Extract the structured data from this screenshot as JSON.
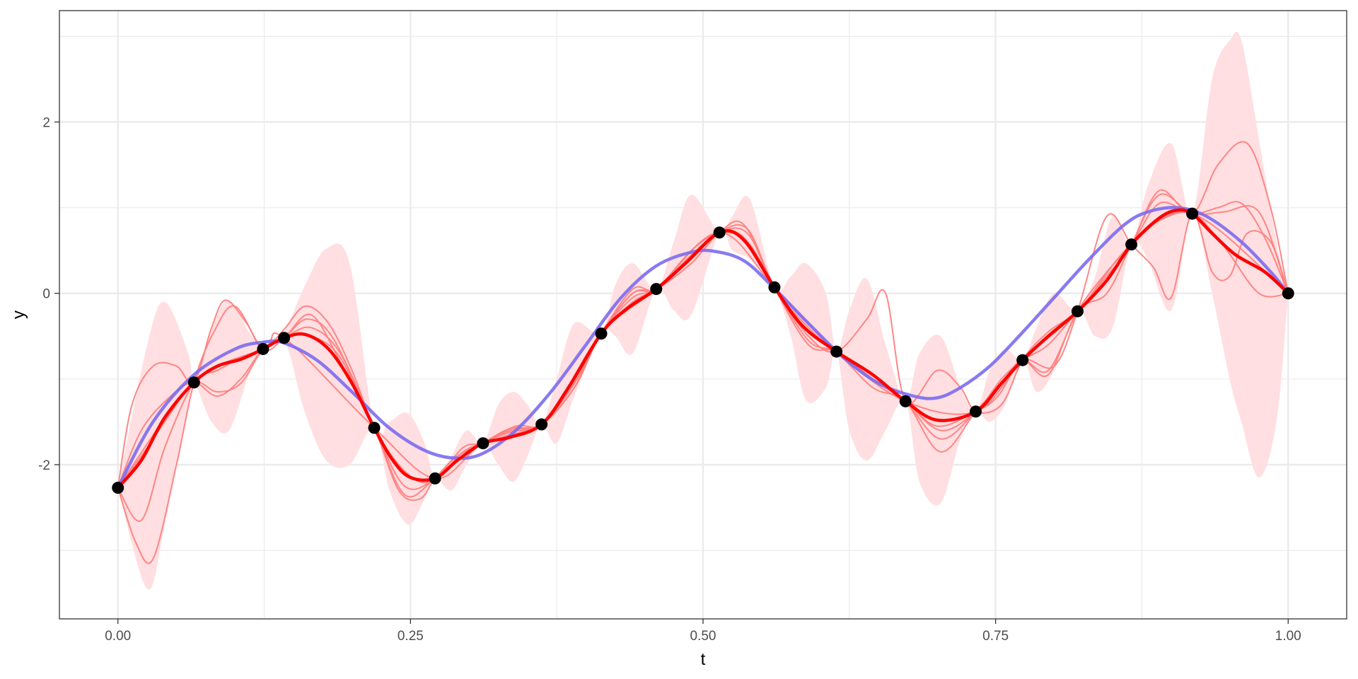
{
  "chart_data": {
    "type": "line",
    "title": "",
    "xlabel": "t",
    "ylabel": "y",
    "xlim": [
      -0.05,
      1.05
    ],
    "ylim": [
      -3.8,
      3.3
    ],
    "x_ticks": [
      0.0,
      0.25,
      0.5,
      0.75,
      1.0
    ],
    "x_tick_labels": [
      "0.00",
      "0.25",
      "0.50",
      "0.75",
      "1.00"
    ],
    "x_minor_ticks": [
      0.125,
      0.375,
      0.625,
      0.875
    ],
    "y_ticks": [
      -2,
      0,
      2
    ],
    "y_tick_labels": [
      "-2",
      "0",
      "2"
    ],
    "y_minor_ticks": [
      -3,
      -1,
      1,
      3
    ],
    "grid": true,
    "colors": {
      "band": "#ffdfe1",
      "sample": "#ff8080",
      "mean": "#ff0000",
      "truth": "#7b6cf0",
      "points": "#000000",
      "grid": "#ebebeb",
      "panel_border": "#333333"
    },
    "points": {
      "x": [
        0.0,
        0.065,
        0.124,
        0.142,
        0.219,
        0.271,
        0.312,
        0.362,
        0.413,
        0.46,
        0.514,
        0.561,
        0.614,
        0.673,
        0.733,
        0.773,
        0.82,
        0.866,
        0.918,
        1.0
      ],
      "y": [
        -2.27,
        -1.04,
        -0.65,
        -0.52,
        -1.57,
        -2.16,
        -1.75,
        -1.53,
        -0.47,
        0.05,
        0.71,
        0.07,
        -0.68,
        -1.26,
        -1.38,
        -0.78,
        -0.21,
        0.57,
        0.93,
        0.0
      ]
    },
    "band": {
      "x": [
        0.0,
        0.025,
        0.04,
        0.06,
        0.065,
        0.08,
        0.095,
        0.112,
        0.124,
        0.142,
        0.16,
        0.178,
        0.198,
        0.219,
        0.232,
        0.248,
        0.262,
        0.271,
        0.285,
        0.298,
        0.312,
        0.325,
        0.338,
        0.35,
        0.362,
        0.375,
        0.39,
        0.413,
        0.425,
        0.44,
        0.46,
        0.475,
        0.49,
        0.514,
        0.525,
        0.54,
        0.561,
        0.575,
        0.588,
        0.605,
        0.614,
        0.625,
        0.64,
        0.656,
        0.673,
        0.685,
        0.703,
        0.72,
        0.733,
        0.745,
        0.758,
        0.773,
        0.785,
        0.8,
        0.82,
        0.835,
        0.85,
        0.866,
        0.88,
        0.9,
        0.918,
        0.935,
        0.95,
        0.96,
        0.975,
        0.99,
        1.0
      ],
      "lower": [
        -2.27,
        -3.45,
        -2.7,
        -1.3,
        -1.04,
        -1.5,
        -1.6,
        -0.95,
        -0.65,
        -0.55,
        -1.4,
        -1.95,
        -2.0,
        -1.57,
        -2.3,
        -2.7,
        -2.4,
        -2.16,
        -2.3,
        -2.0,
        -1.75,
        -2.0,
        -2.2,
        -1.9,
        -1.53,
        -1.75,
        -1.2,
        -0.47,
        -0.5,
        -0.7,
        0.05,
        -0.2,
        -0.25,
        0.71,
        0.5,
        0.4,
        0.07,
        -0.5,
        -1.25,
        -1.1,
        -0.68,
        -1.6,
        -1.95,
        -1.6,
        -1.26,
        -2.2,
        -2.45,
        -1.7,
        -1.38,
        -1.5,
        -1.3,
        -0.78,
        -1.15,
        -0.9,
        -0.21,
        -0.5,
        -0.4,
        0.57,
        0.4,
        -0.2,
        0.93,
        0.0,
        -1.0,
        -1.5,
        -2.15,
        -1.5,
        0.0
      ],
      "upper": [
        -2.27,
        -0.6,
        -0.1,
        -0.7,
        -1.04,
        -0.4,
        -0.08,
        -0.45,
        -0.65,
        -0.45,
        0.1,
        0.52,
        0.35,
        -1.57,
        -1.5,
        -1.4,
        -1.75,
        -2.16,
        -1.9,
        -1.6,
        -1.75,
        -1.3,
        -1.15,
        -1.3,
        -1.53,
        -1.0,
        -0.35,
        -0.47,
        0.1,
        0.35,
        0.05,
        0.6,
        1.15,
        0.71,
        0.9,
        1.1,
        0.07,
        0.2,
        0.35,
        0.0,
        -0.68,
        -0.2,
        0.17,
        -0.6,
        -1.26,
        -0.7,
        -0.5,
        -1.1,
        -1.38,
        -0.9,
        -0.65,
        -0.78,
        -0.4,
        0.0,
        -0.21,
        0.2,
        0.9,
        0.57,
        1.25,
        1.75,
        0.93,
        2.5,
        2.95,
        2.95,
        1.8,
        0.6,
        0.0
      ]
    },
    "series": [
      {
        "x": [
          0.0,
          0.065,
          0.124,
          0.142,
          0.219,
          0.271,
          0.312,
          0.362,
          0.413,
          0.46,
          0.514,
          0.561,
          0.614,
          0.673,
          0.733,
          0.773,
          0.82,
          0.866,
          0.918,
          1.0
        ],
        "y": [
          -2.27,
          -1.04,
          -0.65,
          -0.52,
          -1.57,
          -2.16,
          -1.75,
          -1.53,
          -0.47,
          0.05,
          0.71,
          0.07,
          -0.68,
          -1.26,
          -1.38,
          -0.78,
          -0.21,
          0.57,
          0.93,
          0.0
        ]
      },
      {
        "x": [
          0.0,
          0.012,
          0.03,
          0.05,
          0.065,
          0.08,
          0.092,
          0.11,
          0.124,
          0.142,
          0.16,
          0.18,
          0.2,
          0.219,
          0.24,
          0.258,
          0.271,
          0.29,
          0.312,
          0.335,
          0.362,
          0.39,
          0.413,
          0.44,
          0.46,
          0.49,
          0.514,
          0.535,
          0.561,
          0.59,
          0.614,
          0.64,
          0.656,
          0.673,
          0.7,
          0.72,
          0.733,
          0.755,
          0.773,
          0.795,
          0.82,
          0.845,
          0.866,
          0.89,
          0.918,
          0.94,
          0.965,
          0.985,
          1.0
        ],
        "y": [
          -2.27,
          -1.3,
          -0.85,
          -0.85,
          -1.04,
          -0.4,
          -0.08,
          -0.35,
          -0.65,
          -0.42,
          -0.15,
          -0.35,
          -0.9,
          -1.57,
          -2.0,
          -2.2,
          -2.16,
          -1.95,
          -1.75,
          -1.62,
          -1.53,
          -1.05,
          -0.47,
          0.05,
          0.05,
          0.5,
          0.71,
          0.65,
          0.07,
          -0.5,
          -0.68,
          -0.3,
          0.0,
          -1.26,
          -0.9,
          -1.1,
          -1.38,
          -1.3,
          -0.78,
          -0.45,
          -0.21,
          0.2,
          0.57,
          1.2,
          0.93,
          1.5,
          1.75,
          1.0,
          0.0
        ]
      },
      {
        "x": [
          0.0,
          0.015,
          0.03,
          0.05,
          0.065,
          0.082,
          0.1,
          0.124,
          0.142,
          0.165,
          0.19,
          0.219,
          0.24,
          0.258,
          0.271,
          0.29,
          0.312,
          0.34,
          0.362,
          0.39,
          0.413,
          0.44,
          0.46,
          0.49,
          0.514,
          0.535,
          0.561,
          0.59,
          0.614,
          0.645,
          0.673,
          0.7,
          0.733,
          0.752,
          0.773,
          0.8,
          0.82,
          0.845,
          0.866,
          0.885,
          0.9,
          0.918,
          0.935,
          0.95,
          0.965,
          0.985,
          1.0
        ],
        "y": [
          -2.27,
          -2.9,
          -3.1,
          -2.0,
          -1.04,
          -0.45,
          -0.15,
          -0.65,
          -0.52,
          -0.25,
          -0.8,
          -1.57,
          -2.3,
          -2.4,
          -2.16,
          -1.9,
          -1.75,
          -1.55,
          -1.53,
          -1.05,
          -0.47,
          0.0,
          0.05,
          0.35,
          0.71,
          0.8,
          0.07,
          -0.6,
          -0.68,
          -1.0,
          -1.26,
          -1.55,
          -1.38,
          -1.2,
          -0.78,
          -0.85,
          -0.21,
          0.9,
          0.57,
          0.3,
          -0.05,
          0.93,
          0.25,
          0.2,
          0.7,
          0.6,
          0.0
        ]
      },
      {
        "x": [
          0.0,
          0.02,
          0.04,
          0.065,
          0.085,
          0.105,
          0.124,
          0.142,
          0.162,
          0.185,
          0.219,
          0.245,
          0.271,
          0.295,
          0.312,
          0.335,
          0.362,
          0.39,
          0.413,
          0.44,
          0.46,
          0.49,
          0.514,
          0.538,
          0.561,
          0.59,
          0.614,
          0.645,
          0.673,
          0.703,
          0.733,
          0.755,
          0.773,
          0.795,
          0.82,
          0.845,
          0.866,
          0.89,
          0.918,
          0.94,
          0.96,
          0.98,
          1.0
        ],
        "y": [
          -2.27,
          -2.65,
          -1.8,
          -1.04,
          -0.9,
          -0.75,
          -0.65,
          -0.52,
          -0.3,
          -0.55,
          -1.57,
          -2.25,
          -2.16,
          -1.8,
          -1.75,
          -1.6,
          -1.53,
          -1.1,
          -0.47,
          -0.1,
          0.05,
          0.4,
          0.71,
          0.75,
          0.07,
          -0.4,
          -0.68,
          -0.95,
          -1.26,
          -1.7,
          -1.38,
          -1.05,
          -0.78,
          -0.9,
          -0.21,
          0.25,
          0.57,
          1.05,
          0.93,
          1.0,
          1.05,
          0.65,
          0.0
        ]
      },
      {
        "x": [
          0.0,
          0.02,
          0.045,
          0.065,
          0.085,
          0.105,
          0.124,
          0.142,
          0.165,
          0.19,
          0.219,
          0.245,
          0.271,
          0.295,
          0.312,
          0.335,
          0.362,
          0.39,
          0.413,
          0.44,
          0.46,
          0.49,
          0.514,
          0.538,
          0.561,
          0.59,
          0.614,
          0.645,
          0.673,
          0.703,
          0.733,
          0.755,
          0.773,
          0.795,
          0.82,
          0.845,
          0.866,
          0.89,
          0.918,
          0.945,
          0.975,
          1.0
        ],
        "y": [
          -2.27,
          -1.9,
          -1.4,
          -1.04,
          -1.15,
          -1.05,
          -0.65,
          -0.52,
          -0.4,
          -0.7,
          -1.57,
          -2.35,
          -2.16,
          -1.9,
          -1.75,
          -1.58,
          -1.53,
          -1.1,
          -0.47,
          -0.05,
          0.05,
          0.45,
          0.71,
          0.7,
          0.07,
          -0.45,
          -0.68,
          -1.1,
          -1.26,
          -1.85,
          -1.38,
          -1.05,
          -0.78,
          -0.95,
          -0.21,
          0.0,
          0.57,
          1.15,
          0.93,
          0.95,
          0.95,
          0.0
        ]
      },
      {
        "x": [
          0.0,
          0.02,
          0.045,
          0.065,
          0.085,
          0.105,
          0.124,
          0.142,
          0.165,
          0.19,
          0.219,
          0.245,
          0.271,
          0.295,
          0.312,
          0.335,
          0.362,
          0.39,
          0.413,
          0.44,
          0.46,
          0.49,
          0.514,
          0.538,
          0.561,
          0.59,
          0.614,
          0.645,
          0.673,
          0.703,
          0.733,
          0.755,
          0.773,
          0.795,
          0.82,
          0.845,
          0.866,
          0.89,
          0.918,
          0.945,
          0.975,
          1.0
        ],
        "y": [
          -2.27,
          -1.6,
          -1.2,
          -1.04,
          -1.2,
          -1.0,
          -0.65,
          -0.52,
          -0.5,
          -0.75,
          -1.57,
          -2.1,
          -2.16,
          -1.85,
          -1.75,
          -1.65,
          -1.53,
          -1.05,
          -0.47,
          0.0,
          0.05,
          0.5,
          0.71,
          0.6,
          0.07,
          -0.55,
          -0.68,
          -0.95,
          -1.26,
          -1.6,
          -1.38,
          -1.0,
          -0.78,
          -0.6,
          -0.21,
          0.15,
          0.57,
          0.85,
          0.93,
          0.55,
          0.0,
          0.0
        ]
      }
    ],
    "mean": {
      "x": [
        0.0,
        0.02,
        0.04,
        0.065,
        0.085,
        0.105,
        0.124,
        0.142,
        0.16,
        0.18,
        0.2,
        0.219,
        0.235,
        0.25,
        0.271,
        0.29,
        0.312,
        0.335,
        0.362,
        0.385,
        0.413,
        0.435,
        0.46,
        0.485,
        0.514,
        0.535,
        0.561,
        0.585,
        0.614,
        0.645,
        0.673,
        0.7,
        0.733,
        0.755,
        0.773,
        0.795,
        0.82,
        0.845,
        0.866,
        0.89,
        0.905,
        0.918,
        0.935,
        0.955,
        0.98,
        1.0
      ],
      "y": [
        -2.27,
        -1.95,
        -1.45,
        -1.04,
        -0.85,
        -0.77,
        -0.65,
        -0.52,
        -0.48,
        -0.65,
        -1.05,
        -1.57,
        -1.95,
        -2.15,
        -2.16,
        -1.95,
        -1.75,
        -1.68,
        -1.53,
        -1.1,
        -0.47,
        -0.18,
        0.05,
        0.35,
        0.71,
        0.62,
        0.07,
        -0.38,
        -0.68,
        -0.95,
        -1.26,
        -1.48,
        -1.38,
        -1.05,
        -0.78,
        -0.5,
        -0.21,
        0.15,
        0.57,
        0.88,
        0.97,
        0.93,
        0.7,
        0.45,
        0.25,
        0.0
      ]
    },
    "truth": {
      "x": [
        0.0,
        0.03,
        0.065,
        0.1,
        0.124,
        0.142,
        0.17,
        0.2,
        0.23,
        0.26,
        0.285,
        0.31,
        0.34,
        0.37,
        0.4,
        0.43,
        0.46,
        0.49,
        0.51,
        0.535,
        0.56,
        0.59,
        0.62,
        0.65,
        0.68,
        0.7,
        0.72,
        0.745,
        0.77,
        0.8,
        0.83,
        0.86,
        0.88,
        0.905,
        0.93,
        0.96,
        0.985,
        1.0
      ],
      "y": [
        -2.27,
        -1.5,
        -0.95,
        -0.65,
        -0.57,
        -0.58,
        -0.78,
        -1.15,
        -1.55,
        -1.82,
        -1.92,
        -1.88,
        -1.6,
        -1.15,
        -0.6,
        -0.05,
        0.32,
        0.48,
        0.49,
        0.38,
        0.07,
        -0.35,
        -0.75,
        -1.05,
        -1.2,
        -1.22,
        -1.1,
        -0.85,
        -0.5,
        -0.05,
        0.4,
        0.8,
        0.95,
        1.0,
        0.9,
        0.6,
        0.25,
        0.0
      ]
    }
  }
}
